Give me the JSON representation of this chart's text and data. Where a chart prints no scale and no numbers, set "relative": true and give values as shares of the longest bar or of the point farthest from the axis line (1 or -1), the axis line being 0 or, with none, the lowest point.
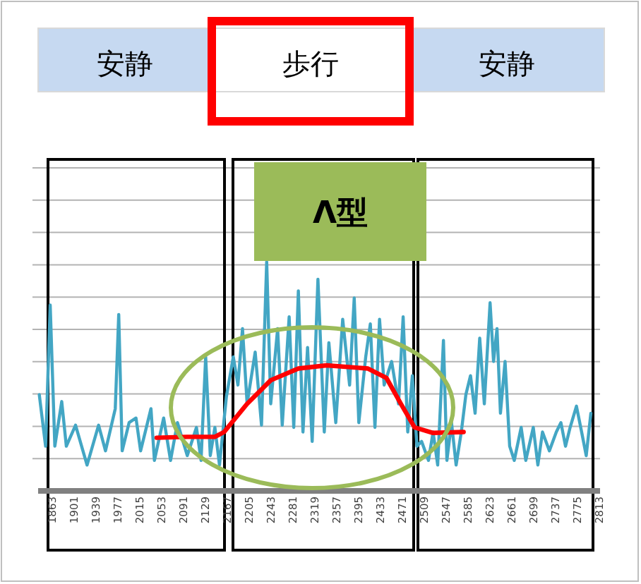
{
  "chart_data": {
    "type": "line",
    "relative": true,
    "grid": true,
    "marker": "none",
    "line_style": "solid",
    "xlim": [
      1840,
      2816
    ],
    "xticks": [
      1863,
      1901,
      1939,
      1977,
      2015,
      2053,
      2091,
      2129,
      2167,
      2205,
      2243,
      2281,
      2319,
      2357,
      2395,
      2433,
      2471,
      2509,
      2547,
      2585,
      2623,
      2661,
      2699,
      2737,
      2775,
      2813
    ],
    "annotations": [
      "安静",
      "歩行",
      "安静",
      "Λ型"
    ],
    "series": [
      {
        "color": "#43a6c4",
        "x": [
          1842,
          1853,
          1861,
          1869,
          1881,
          1889,
          1905,
          1925,
          1945,
          1957,
          1974,
          1980,
          1986,
          1998,
          2010,
          2018,
          2036,
          2042,
          2058,
          2070,
          2082,
          2099,
          2115,
          2123,
          2131,
          2139,
          2147,
          2155,
          2167,
          2179,
          2187,
          2195,
          2203,
          2217,
          2228,
          2237,
          2244,
          2256,
          2264,
          2276,
          2284,
          2292,
          2300,
          2308,
          2316,
          2326,
          2337,
          2345,
          2357,
          2369,
          2381,
          2389,
          2397,
          2409,
          2417,
          2425,
          2433,
          2441,
          2454,
          2466,
          2474,
          2482,
          2490,
          2498,
          2506,
          2518,
          2526,
          2534,
          2544,
          2550,
          2558,
          2566,
          2575,
          2583,
          2591,
          2599,
          2607,
          2615,
          2625,
          2631,
          2637,
          2643,
          2651,
          2659,
          2667,
          2679,
          2687,
          2700,
          2708,
          2716,
          2728,
          2740,
          2748,
          2756,
          2764,
          2775,
          2784,
          2792,
          2800
        ],
        "values": [
          0.42,
          0.195,
          0.811,
          0.195,
          0.39,
          0.195,
          0.287,
          0.113,
          0.287,
          0.175,
          0.359,
          0.77,
          0.175,
          0.298,
          0.318,
          0.175,
          0.359,
          0.133,
          0.318,
          0.133,
          0.298,
          0.154,
          0.277,
          0.133,
          0.585,
          0.154,
          0.277,
          0.113,
          0.411,
          0.585,
          0.462,
          0.708,
          0.38,
          0.606,
          0.287,
          1,
          0.38,
          0.708,
          0.287,
          0.76,
          0.277,
          0.873,
          0.257,
          0.626,
          0.216,
          0.924,
          0.257,
          0.647,
          0.298,
          0.749,
          0.462,
          0.842,
          0.298,
          0.585,
          0.729,
          0.277,
          0.749,
          0.462,
          0.565,
          0.38,
          0.76,
          0.257,
          0.503,
          0.195,
          0.216,
          0.133,
          0.257,
          0.113,
          0.657,
          0.133,
          0.298,
          0.113,
          0.257,
          0.421,
          0.503,
          0.339,
          0.667,
          0.38,
          0.821,
          0.565,
          0.708,
          0.339,
          0.565,
          0.195,
          0.133,
          0.277,
          0.133,
          0.277,
          0.113,
          0.257,
          0.175,
          0.257,
          0.298,
          0.195,
          0.277,
          0.37,
          0.257,
          0.154,
          0.339
        ]
      },
      {
        "color": "#ff0000",
        "x": [
          2046,
          2099,
          2147,
          2163,
          2203,
          2244,
          2292,
          2341,
          2413,
          2445,
          2470,
          2494,
          2526,
          2579
        ],
        "values": [
          0.232,
          0.236,
          0.236,
          0.257,
          0.38,
          0.483,
          0.534,
          0.548,
          0.534,
          0.493,
          0.38,
          0.277,
          0.253,
          0.257
        ]
      }
    ]
  }
}
